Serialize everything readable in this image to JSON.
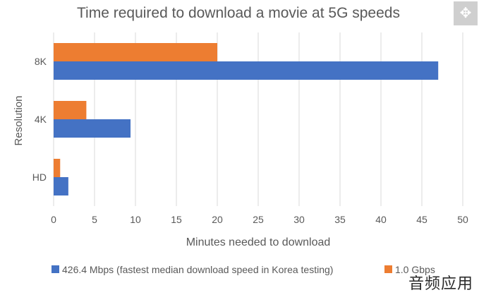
{
  "chart_data": {
    "type": "bar",
    "orientation": "horizontal",
    "title": "Time required to download a movie at 5G speeds",
    "xlabel": "Minutes needed to download",
    "ylabel": "Resolution",
    "categories": [
      "8K",
      "4K",
      "HD"
    ],
    "series": [
      {
        "name": "1.0 Gbps",
        "color": "#ed7d31",
        "values": [
          20,
          4,
          0.8
        ]
      },
      {
        "name": "426.4 Mbps (fastest median download speed in Korea testing)",
        "color": "#4472c4",
        "values": [
          47,
          9.4,
          1.8
        ]
      }
    ],
    "xlim": [
      0,
      50
    ],
    "xticks": [
      "0",
      "5",
      "10",
      "15",
      "20",
      "25",
      "30",
      "35",
      "40",
      "45",
      "50"
    ],
    "grid": "vertical",
    "legend_position": "bottom"
  },
  "watermark": "音频应用",
  "expand_icon": "expand-arrows-icon",
  "colors": {
    "grid": "#d9d9d9",
    "axis_text": "#595959",
    "title": "#595959"
  }
}
